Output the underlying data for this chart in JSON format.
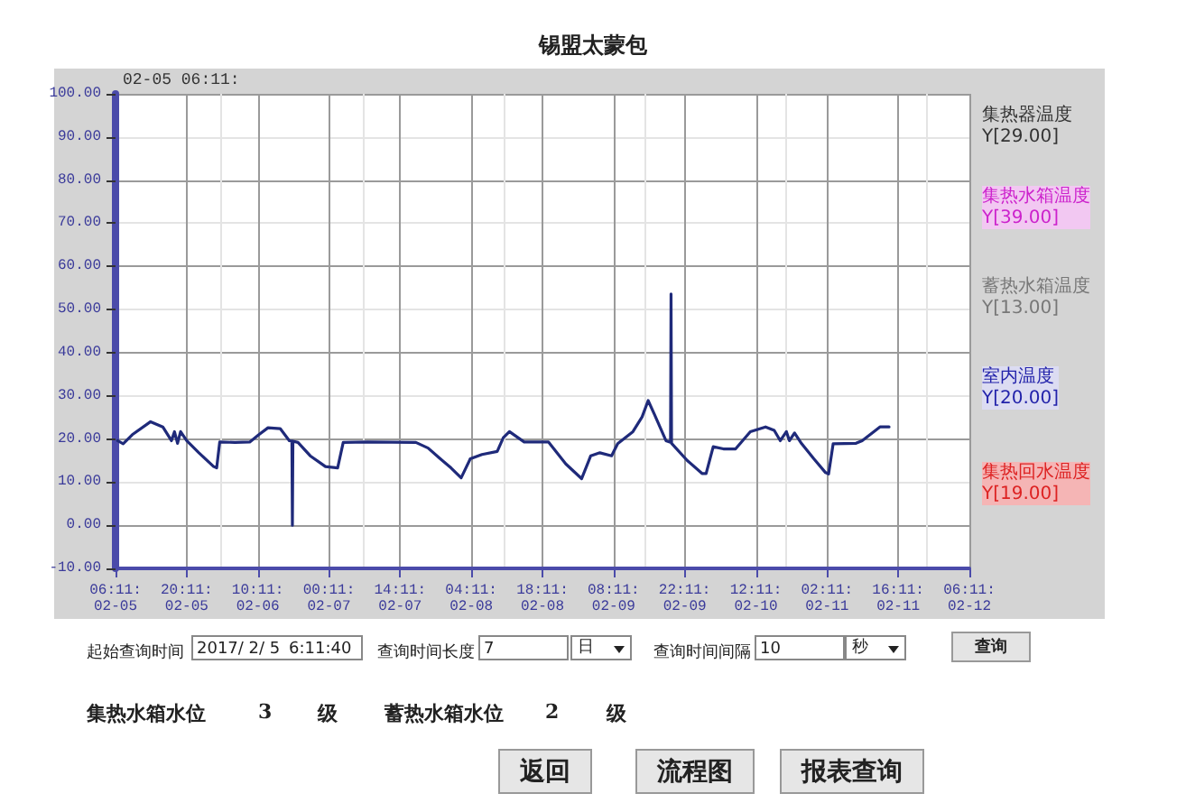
{
  "chart_data": {
    "type": "line",
    "title": "锡盟太蒙包",
    "x": [
      "2017-02-05T06:35",
      "2017-02-05T07:41",
      "2017-02-05T09:29",
      "2017-02-05T13:05",
      "2017-02-05T15:29",
      "2017-02-05T17:11",
      "2017-02-05T17:47",
      "2017-02-05T18:23",
      "2017-02-05T18:59",
      "2017-02-05T20:11",
      "2017-02-05T22:35",
      "2017-02-06T01:29",
      "2017-02-06T02:05",
      "2017-02-06T02:41",
      "2017-02-06T05:41",
      "2017-02-06T08:35",
      "2017-02-06T10:23",
      "2017-02-06T12:11",
      "2017-02-06T14:35",
      "2017-02-06T16:23",
      "2017-02-06T16:53",
      "2017-02-06T16:59",
      "2017-02-06T17:05",
      "2017-02-06T18:05",
      "2017-02-06T20:29",
      "2017-02-06T23:29",
      "2017-02-07T01:53",
      "2017-02-07T02:59",
      "2017-02-07T07:47",
      "2017-02-07T17:17",
      "2017-02-07T19:41",
      "2017-02-07T21:59",
      "2017-02-08T00:11",
      "2017-02-08T02:11",
      "2017-02-08T03:59",
      "2017-02-08T06:17",
      "2017-02-08T09:17",
      "2017-02-08T10:29",
      "2017-02-08T11:41",
      "2017-02-08T13:23",
      "2017-02-08T14:35",
      "2017-02-08T19:23",
      "2017-02-08T22:47",
      "2017-02-09T01:53",
      "2017-02-09T03:41",
      "2017-02-09T05:29",
      "2017-02-09T07:47",
      "2017-02-09T08:59",
      "2017-02-09T11:59",
      "2017-02-09T13:47",
      "2017-02-09T14:59",
      "2017-02-09T16:11",
      "2017-02-09T18:29",
      "2017-02-09T19:23",
      "2017-02-09T19:29",
      "2017-02-09T19:35",
      "2017-02-09T22:41",
      "2017-02-10T01:35",
      "2017-02-10T02:23",
      "2017-02-10T03:47",
      "2017-02-10T05:47",
      "2017-02-10T08:11",
      "2017-02-10T11:05",
      "2017-02-10T14:05",
      "2017-02-10T15:47",
      "2017-02-10T16:59",
      "2017-02-10T18:11",
      "2017-02-10T18:47",
      "2017-02-10T19:47",
      "2017-02-10T21:11",
      "2017-02-10T23:35",
      "2017-02-11T01:53",
      "2017-02-11T02:29",
      "2017-02-11T03:23",
      "2017-02-11T07:53",
      "2017-02-11T09:05",
      "2017-02-11T11:23",
      "2017-02-11T12:35",
      "2017-02-11T14:23"
    ],
    "series": [
      {
        "color": "#1f2a7a",
        "values": [
          19.6,
          18.9,
          21,
          24,
          22.8,
          19.6,
          21.7,
          19,
          21.7,
          19.6,
          16.8,
          13.6,
          13.3,
          19.3,
          19.2,
          19.3,
          21,
          22.6,
          22.4,
          19.6,
          19.5,
          0,
          19.5,
          19.2,
          16.1,
          13.6,
          13.3,
          19.2,
          19.3,
          19.2,
          17.9,
          15.5,
          13.3,
          11,
          15.4,
          16.4,
          17.1,
          20.3,
          21.7,
          20.3,
          19.3,
          19.3,
          14.2,
          10.8,
          16.1,
          16.8,
          16.1,
          18.9,
          21.7,
          25.1,
          28.9,
          25.8,
          19.6,
          19.2,
          53.6,
          19,
          15,
          12,
          12,
          18.2,
          17.7,
          17.7,
          21.7,
          22.8,
          22,
          19.6,
          21.7,
          19.6,
          21.4,
          18.9,
          15.4,
          12.2,
          11.9,
          18.9,
          19,
          19.6,
          21.7,
          22.8,
          22.8
        ]
      }
    ],
    "xlim": [
      "2017-02-05T06:11",
      "2017-02-12T06:11"
    ],
    "xticks": [
      {
        "value": "2017-02-05T06:11",
        "label": "06:11:\n02-05"
      },
      {
        "value": "2017-02-05T20:11",
        "label": "20:11:\n02-05"
      },
      {
        "value": "2017-02-06T10:11",
        "label": "10:11:\n02-06"
      },
      {
        "value": "2017-02-07T00:11",
        "label": "00:11:\n02-07"
      },
      {
        "value": "2017-02-07T14:11",
        "label": "14:11:\n02-07"
      },
      {
        "value": "2017-02-08T04:11",
        "label": "04:11:\n02-08"
      },
      {
        "value": "2017-02-08T18:11",
        "label": "18:11:\n02-08"
      },
      {
        "value": "2017-02-09T08:11",
        "label": "08:11:\n02-09"
      },
      {
        "value": "2017-02-09T22:11",
        "label": "22:11:\n02-09"
      },
      {
        "value": "2017-02-10T12:11",
        "label": "12:11:\n02-10"
      },
      {
        "value": "2017-02-11T02:11",
        "label": "02:11:\n02-11"
      },
      {
        "value": "2017-02-11T16:11",
        "label": "16:11:\n02-11"
      },
      {
        "value": "2017-02-12T06:11",
        "label": "06:11:\n02-12"
      }
    ],
    "ylim": [
      -10,
      100
    ],
    "yticks": [
      {
        "value": -10,
        "label": "-10.00"
      },
      {
        "value": 0,
        "label": "0.00"
      },
      {
        "value": 10,
        "label": "10.00"
      },
      {
        "value": 20,
        "label": "20.00"
      },
      {
        "value": 30,
        "label": "30.00"
      },
      {
        "value": 40,
        "label": "40.00"
      },
      {
        "value": 50,
        "label": "50.00"
      },
      {
        "value": 60,
        "label": "60.00"
      },
      {
        "value": 70,
        "label": "70.00"
      },
      {
        "value": 80,
        "label": "80.00"
      },
      {
        "value": 90,
        "label": "90.00"
      },
      {
        "value": 100,
        "label": "100.00"
      }
    ],
    "grid": true,
    "marker": "none",
    "line_style": "solid",
    "annotations": [
      "02-05 06:11:",
      "集热器温度\nY[29.00]",
      "集热水箱温度\nY[39.00]",
      "蓄热水箱温度\nY[13.00]",
      "室内温度\nY[20.00]",
      "集热回水温度\nY[19.00]",
      "起始查询时间",
      "2017/ 2/ 5",
      "6:11:40",
      "查询时间长度",
      "7",
      "日",
      "查询时间间隔",
      "10",
      "秒",
      "查询",
      "集热水箱水位",
      "3",
      "级",
      "蓄热水箱水位",
      "2",
      "级",
      "返回",
      "流程图",
      "报表查询"
    ]
  }
}
